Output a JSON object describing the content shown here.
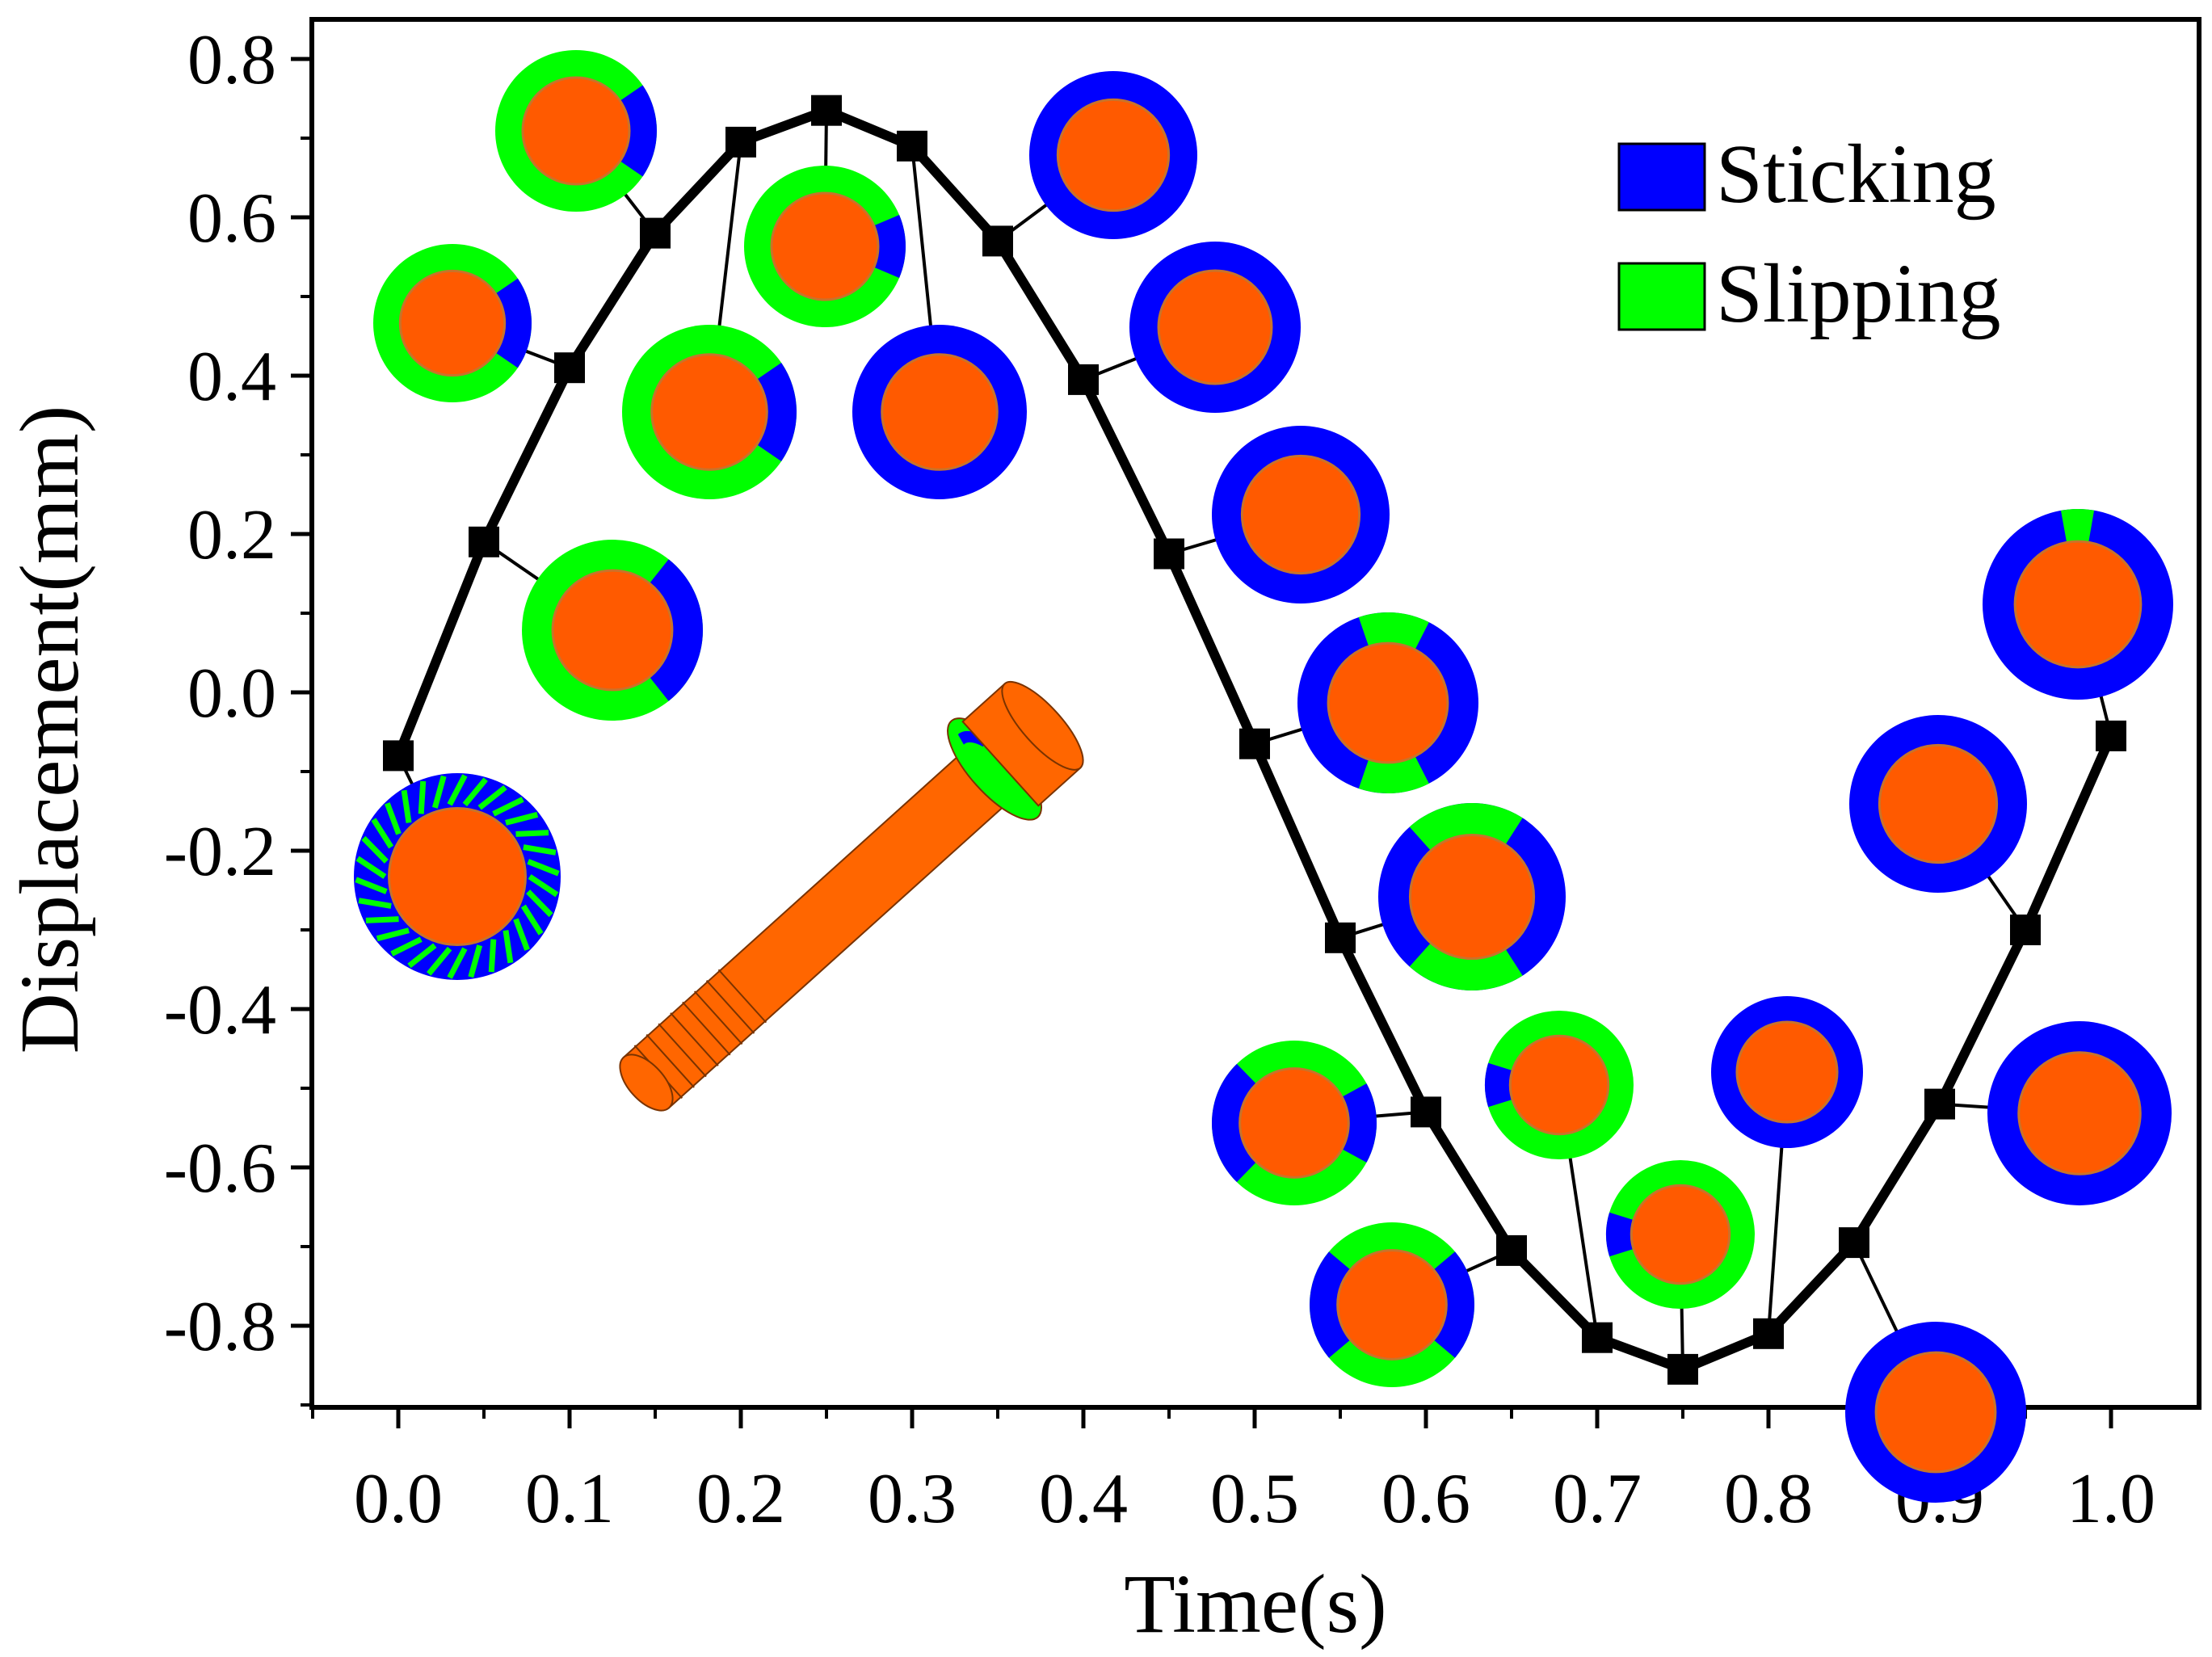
{
  "chart_data": {
    "type": "line",
    "title": "",
    "xlabel": "Time(s)",
    "ylabel": "Displacement(mm)",
    "xlim": [
      -0.05,
      1.05
    ],
    "ylim": [
      -0.9,
      0.85
    ],
    "xticks": [
      "0.0",
      "0.1",
      "0.2",
      "0.3",
      "0.4",
      "0.5",
      "0.6",
      "0.7",
      "0.8",
      "0.9",
      "1.0"
    ],
    "yticks": [
      "0.8",
      "0.6",
      "0.4",
      "0.2",
      "0.0",
      "-0.2",
      "-0.4",
      "-0.6",
      "-0.8"
    ],
    "grid": false,
    "legend": {
      "position": "top-right",
      "entries": [
        {
          "label": "Sticking",
          "color": "#0000ff"
        },
        {
          "label": "Slipping",
          "color": "#00ff00"
        }
      ]
    },
    "series": [
      {
        "name": "Displacement",
        "marker": "square",
        "color": "#000000",
        "x": [
          0.0,
          0.05,
          0.1,
          0.15,
          0.2,
          0.25,
          0.3,
          0.35,
          0.4,
          0.45,
          0.5,
          0.55,
          0.6,
          0.65,
          0.7,
          0.75,
          0.8,
          0.85,
          0.9,
          0.95,
          1.0
        ],
        "y": [
          -0.08,
          0.19,
          0.41,
          0.58,
          0.695,
          0.735,
          0.69,
          0.57,
          0.395,
          0.175,
          -0.065,
          -0.31,
          -0.53,
          -0.705,
          -0.815,
          -0.855,
          -0.81,
          -0.695,
          -0.52,
          -0.3,
          -0.055
        ]
      }
    ],
    "annotations": [
      {
        "type": "contact-status-insets",
        "description_colors": {
          "bolt": "#ff5a00",
          "sticking": "#0000ff",
          "slipping": "#00ff00"
        }
      },
      {
        "type": "bolt-model-inset"
      }
    ]
  }
}
